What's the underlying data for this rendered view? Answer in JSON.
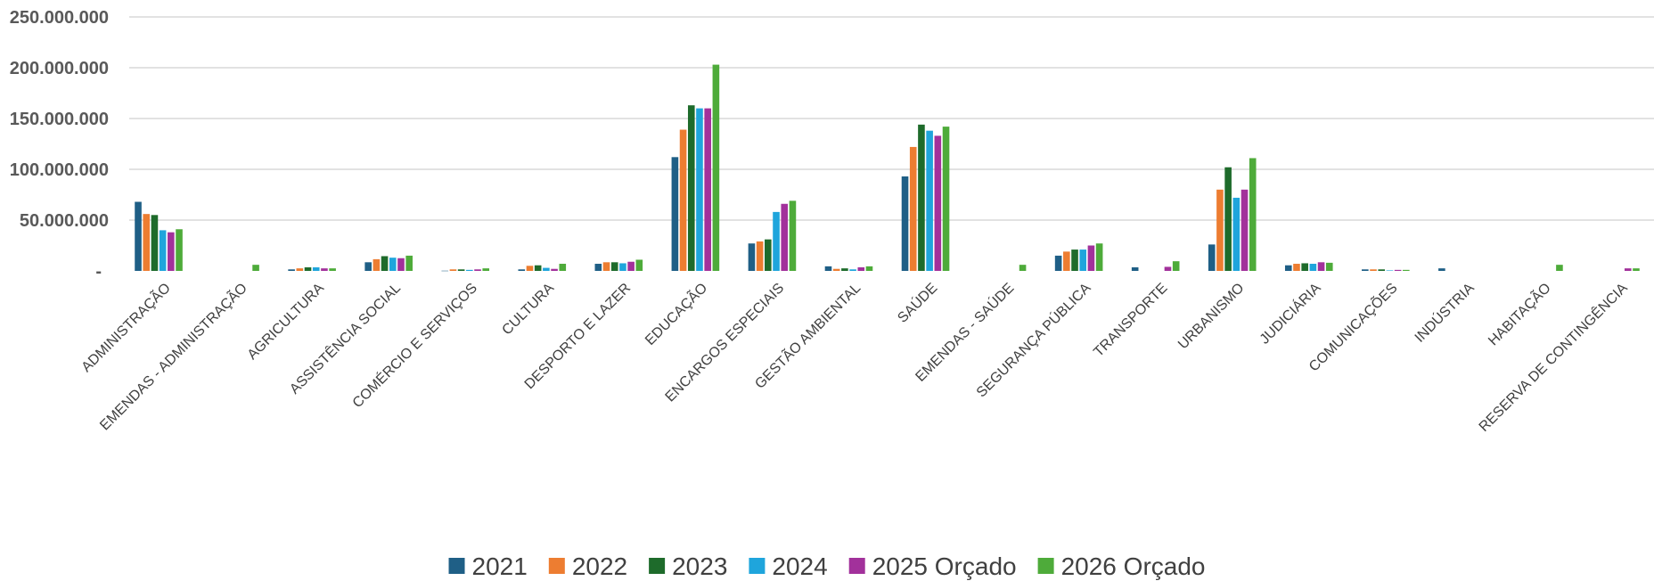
{
  "chart_data": {
    "type": "bar",
    "title": "",
    "xlabel": "",
    "ylabel": "",
    "ylim": [
      0,
      250000000
    ],
    "grid": true,
    "legend_position": "bottom",
    "y_ticks": [
      {
        "value": 0,
        "label": "-"
      },
      {
        "value": 50000000,
        "label": "50.000.000"
      },
      {
        "value": 100000000,
        "label": "100.000.000"
      },
      {
        "value": 150000000,
        "label": "150.000.000"
      },
      {
        "value": 200000000,
        "label": "200.000.000"
      },
      {
        "value": 250000000,
        "label": "250.000.000"
      }
    ],
    "categories": [
      "ADMINISTRAÇÃO",
      "EMENDAS - ADMINISTRAÇÃO",
      "AGRICULTURA",
      "ASSISTÊNCIA SOCIAL",
      "COMÉRCIO E SERVIÇOS",
      "CULTURA",
      "DESPORTO E LAZER",
      "EDUCAÇÃO",
      "ENCARGOS ESPECIAIS",
      "GESTÃO AMBIENTAL",
      "SAÚDE",
      "EMENDAS - SAÚDE",
      "SEGURANÇA PÚBLICA",
      "TRANSPORTE",
      "URBANISMO",
      "JUDICIÁRIA",
      "COMUNICAÇÕES",
      "INDÚSTRIA",
      "HABITAÇÃO",
      "RESERVA DE CONTINGÊNCIA"
    ],
    "series": [
      {
        "name": "2021",
        "color": "#1f5f86",
        "values": [
          68000000,
          0,
          1500000,
          8500000,
          200000,
          1500000,
          7000000,
          112000000,
          27000000,
          4500000,
          93000000,
          0,
          15000000,
          3500000,
          26000000,
          5500000,
          1500000,
          2500000,
          0,
          0
        ]
      },
      {
        "name": "2022",
        "color": "#ed7d31",
        "values": [
          56000000,
          0,
          2500000,
          11500000,
          1500000,
          5000000,
          8500000,
          139000000,
          29000000,
          2000000,
          122000000,
          0,
          19000000,
          0,
          80000000,
          7000000,
          1500000,
          0,
          0,
          0
        ]
      },
      {
        "name": "2023",
        "color": "#1e6b2b",
        "values": [
          55000000,
          0,
          3500000,
          14500000,
          1500000,
          5500000,
          8500000,
          163000000,
          31000000,
          2500000,
          144000000,
          0,
          21000000,
          0,
          102000000,
          7500000,
          1500000,
          0,
          0,
          0
        ]
      },
      {
        "name": "2024",
        "color": "#1fa5dc",
        "values": [
          40000000,
          0,
          3500000,
          13000000,
          1000000,
          3000000,
          7500000,
          160000000,
          58000000,
          1500000,
          138000000,
          0,
          21000000,
          0,
          72000000,
          7000000,
          500000,
          0,
          0,
          0
        ]
      },
      {
        "name": "2025 Orçado",
        "color": "#a2319b",
        "values": [
          38000000,
          0,
          2500000,
          12500000,
          1500000,
          2000000,
          9000000,
          160000000,
          66000000,
          3500000,
          133000000,
          0,
          25000000,
          4000000,
          80000000,
          8500000,
          1000000,
          0,
          0,
          2500000
        ]
      },
      {
        "name": "2026 Orçado",
        "color": "#4eab3a",
        "values": [
          41000000,
          6000000,
          2500000,
          15000000,
          2500000,
          7000000,
          11000000,
          203000000,
          69000000,
          4500000,
          142000000,
          6000000,
          27000000,
          9500000,
          111000000,
          8000000,
          1000000,
          0,
          6000000,
          2500000
        ]
      }
    ]
  }
}
